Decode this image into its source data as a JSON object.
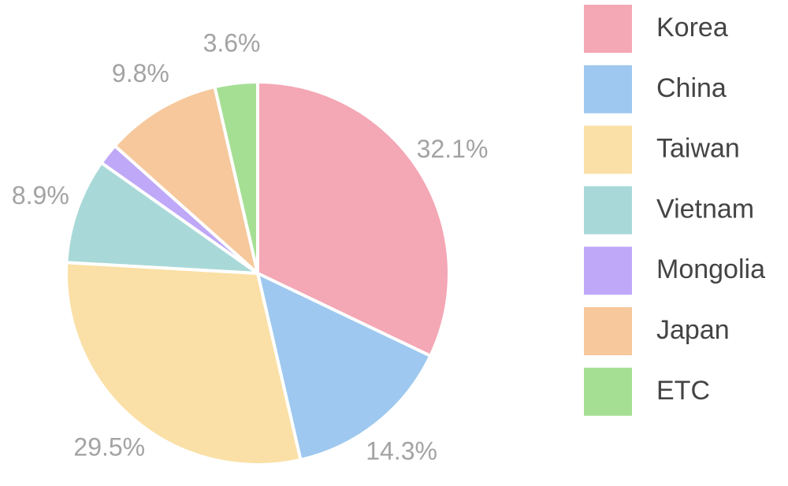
{
  "chart_data": {
    "type": "pie",
    "categories": [
      "Korea",
      "China",
      "Taiwan",
      "Vietnam",
      "Mongolia",
      "Japan",
      "ETC"
    ],
    "values": [
      32.1,
      14.3,
      29.5,
      8.9,
      1.8,
      9.8,
      3.6
    ],
    "value_labels": [
      "32.1%",
      "14.3%",
      "29.5%",
      "8.9%",
      null,
      "9.8%",
      "3.6%"
    ],
    "colors": [
      "#f4a7b5",
      "#9ec8ef",
      "#fae0a6",
      "#a8d9d8",
      "#bfa8f7",
      "#f6c89c",
      "#a5df94"
    ],
    "legend": "right"
  }
}
